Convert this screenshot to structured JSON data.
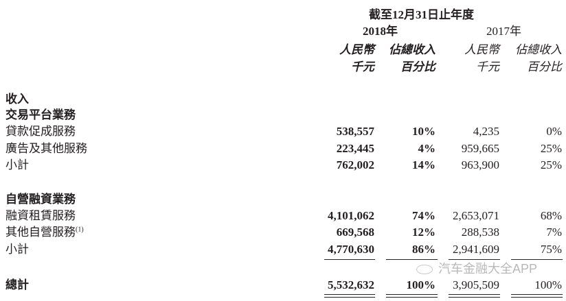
{
  "header": {
    "period": "截至12月31日止年度",
    "years": [
      "2018年",
      "2017年"
    ],
    "col_currency": "人民幣",
    "col_currency_unit": "千元",
    "col_pct": "佔總收入",
    "col_pct_unit": "百分比"
  },
  "sections": {
    "revenue_label": "收入",
    "platform": {
      "title": "交易平台業務",
      "rows": [
        {
          "label": "貸款促成服務",
          "v2018": "538,557",
          "p2018": "10%",
          "v2017": "4,235",
          "p2017": "0%"
        },
        {
          "label": "廣告及其他服務",
          "v2018": "223,445",
          "p2018": "4%",
          "v2017": "959,665",
          "p2017": "25%"
        },
        {
          "label": "小計",
          "v2018": "762,002",
          "p2018": "14%",
          "v2017": "963,900",
          "p2017": "25%"
        }
      ]
    },
    "financing": {
      "title": "自營融資業務",
      "rows": [
        {
          "label": "融資租賃服務",
          "v2018": "4,101,062",
          "p2018": "74%",
          "v2017": "2,653,071",
          "p2017": "68%"
        },
        {
          "label": "其他自營服務",
          "sup": "(1)",
          "v2018": "669,568",
          "p2018": "12%",
          "v2017": "288,538",
          "p2017": "7%"
        },
        {
          "label": "小計",
          "v2018": "4,770,630",
          "p2018": "86%",
          "v2017": "2,941,609",
          "p2017": "75%"
        }
      ]
    },
    "total": {
      "label": "總計",
      "v2018": "5,532,632",
      "p2018": "100%",
      "v2017": "3,905,509",
      "p2017": "100%"
    }
  },
  "watermark": {
    "icon": "wechat-icon",
    "text": "汽车金融大全APP"
  }
}
